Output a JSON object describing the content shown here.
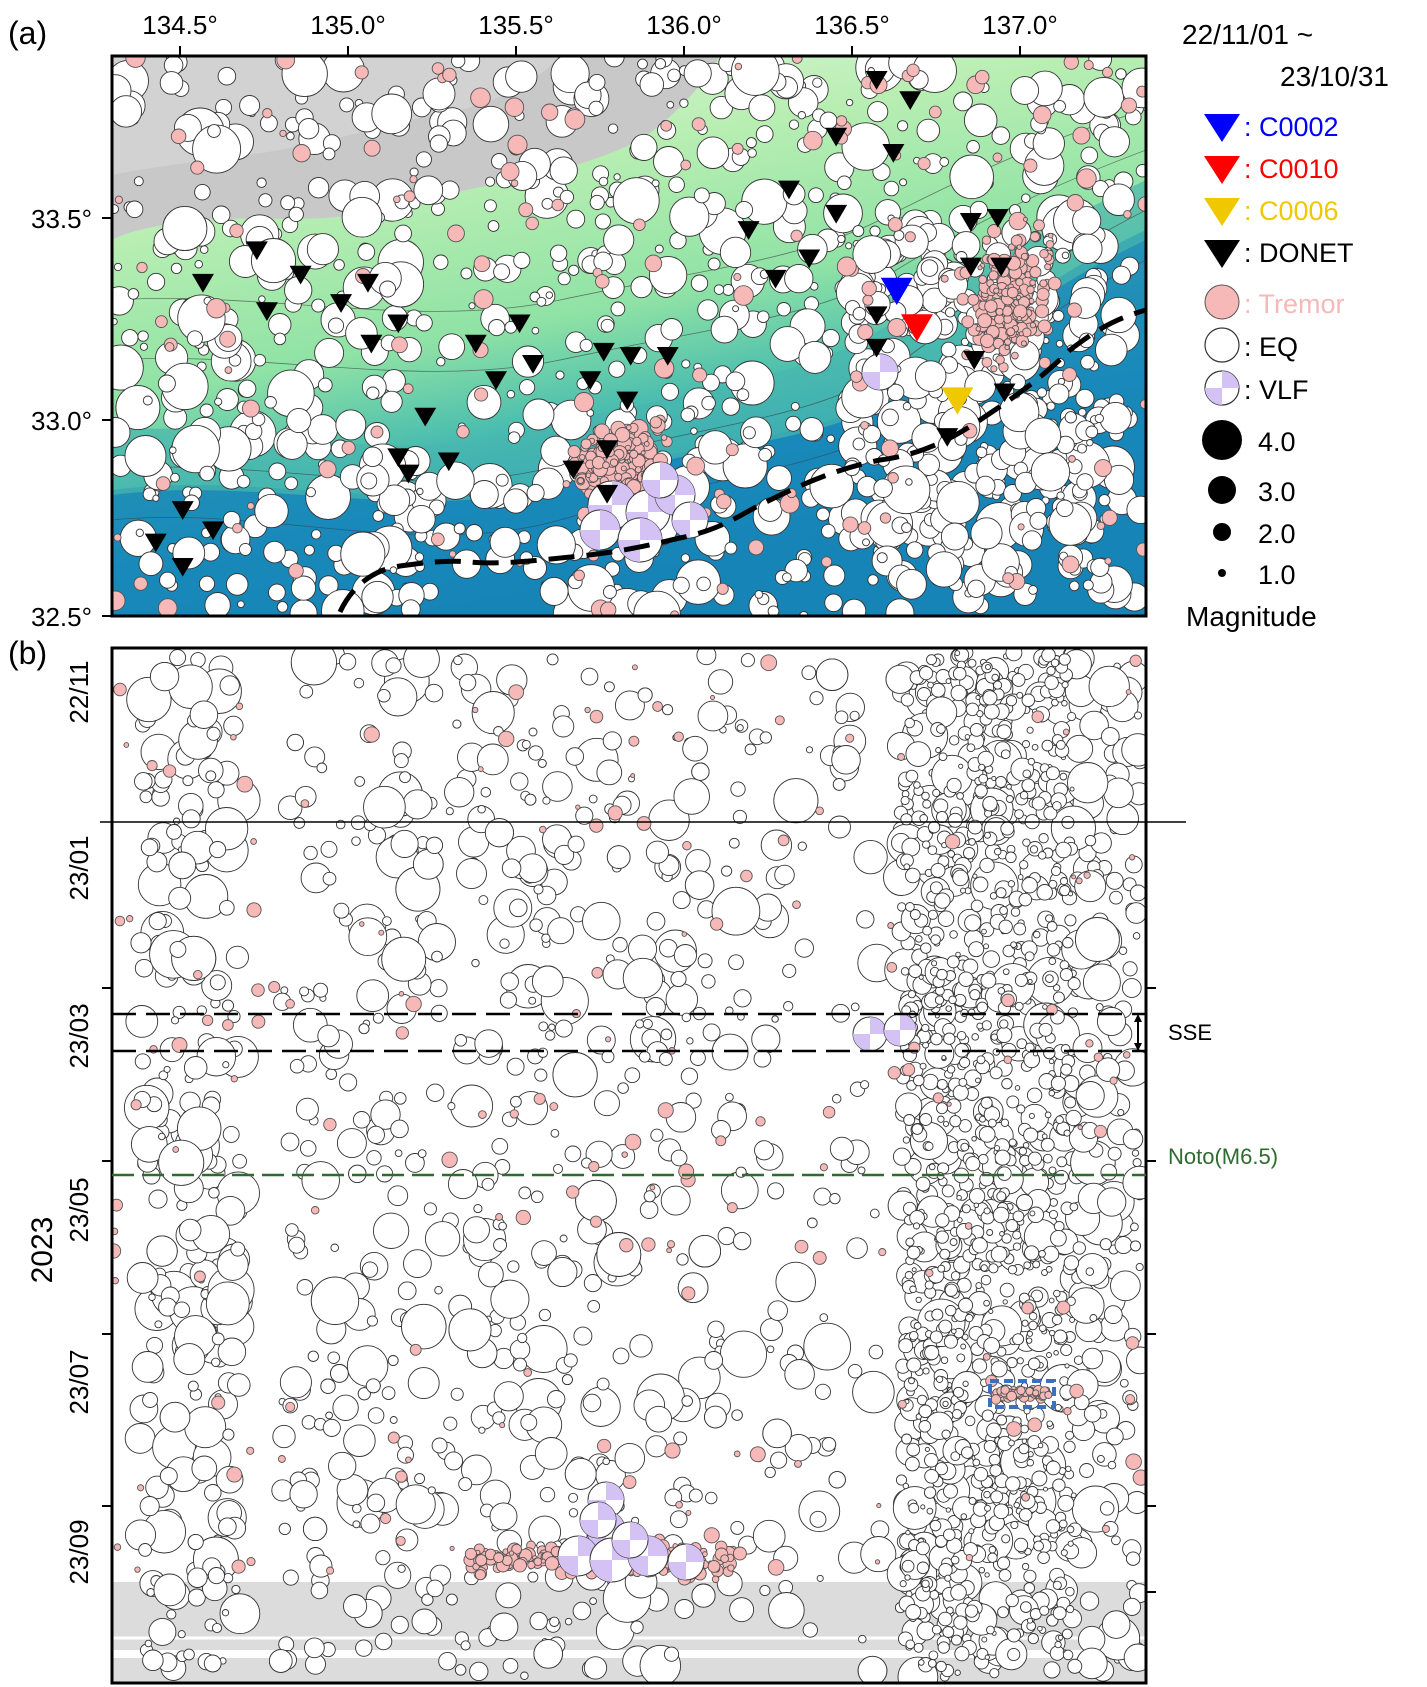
{
  "panel_a": {
    "label": "(a)",
    "lon_ticks": [
      "134.5°",
      "135.0°",
      "135.5°",
      "136.0°",
      "136.5°",
      "137.0°"
    ],
    "lat_ticks": [
      "33.5°",
      "33.0°",
      "32.5°"
    ],
    "date_range_line1": "22/11/01 ~",
    "date_range_line2": "23/10/31",
    "legend": {
      "stations": [
        {
          "label": ": C0002",
          "color": "#0000ff"
        },
        {
          "label": ": C0010",
          "color": "#ff0000"
        },
        {
          "label": ": C0006",
          "color": "#f0c800"
        },
        {
          "label": ": DONET",
          "color": "#000000"
        }
      ],
      "events": [
        {
          "label": ": Tremor",
          "color": "#f7b8b8",
          "text_color": "#f7b8b8"
        },
        {
          "label": ": EQ",
          "color": "#ffffff",
          "text_color": "#000000"
        },
        {
          "label": ": VLF",
          "color": "#d4c2f5",
          "text_color": "#000000"
        }
      ],
      "magnitudes": [
        "4.0",
        "3.0",
        "2.0",
        "1.0"
      ],
      "magnitude_title": "Magnitude"
    },
    "colors": {
      "land": "#c8c8c8",
      "shelf_light": "#e8f8e0",
      "shelf": "#b6eeb0",
      "slope": "#5fc7ad",
      "deep": "#1b8fc0",
      "trough": "#1275a8"
    },
    "stations": {
      "C0002": {
        "lon": 136.64,
        "lat": 33.3
      },
      "C0010": {
        "lon": 136.7,
        "lat": 33.21
      },
      "C0006": {
        "lon": 136.82,
        "lat": 33.03
      },
      "DONET": [
        [
          136.58,
          33.82
        ],
        [
          136.68,
          33.77
        ],
        [
          136.46,
          33.68
        ],
        [
          136.63,
          33.64
        ],
        [
          136.32,
          33.55
        ],
        [
          136.46,
          33.49
        ],
        [
          136.2,
          33.45
        ],
        [
          136.38,
          33.38
        ],
        [
          136.28,
          33.33
        ],
        [
          134.74,
          33.4
        ],
        [
          134.58,
          33.32
        ],
        [
          134.87,
          33.34
        ],
        [
          134.99,
          33.27
        ],
        [
          135.07,
          33.32
        ],
        [
          134.77,
          33.25
        ],
        [
          135.16,
          33.22
        ],
        [
          135.08,
          33.17
        ],
        [
          135.39,
          33.17
        ],
        [
          135.52,
          33.22
        ],
        [
          135.45,
          33.08
        ],
        [
          135.56,
          33.12
        ],
        [
          135.73,
          33.08
        ],
        [
          135.77,
          33.15
        ],
        [
          135.85,
          33.14
        ],
        [
          135.96,
          33.14
        ],
        [
          135.84,
          33.03
        ],
        [
          135.24,
          32.99
        ],
        [
          135.16,
          32.89
        ],
        [
          135.19,
          32.85
        ],
        [
          135.31,
          32.88
        ],
        [
          135.68,
          32.86
        ],
        [
          135.78,
          32.91
        ],
        [
          135.78,
          32.8
        ],
        [
          134.52,
          32.76
        ],
        [
          134.44,
          32.68
        ],
        [
          134.61,
          32.71
        ],
        [
          134.52,
          32.62
        ],
        [
          136.58,
          33.24
        ],
        [
          136.58,
          33.16
        ],
        [
          136.86,
          33.47
        ],
        [
          136.94,
          33.48
        ],
        [
          136.86,
          33.36
        ],
        [
          136.95,
          33.36
        ],
        [
          136.87,
          33.13
        ],
        [
          136.79,
          32.94
        ],
        [
          136.96,
          33.05
        ]
      ]
    }
  },
  "panel_b": {
    "label": "(b)",
    "year_label": "2023",
    "date_ticks": [
      "22/11",
      "23/01",
      "23/03",
      "23/05",
      "23/07",
      "23/09"
    ],
    "sse_label": "SSE",
    "noto_label": "Noto(M6.5)",
    "colors": {
      "noto_line": "#2e6b2e",
      "data_gap": "#dcdcdc",
      "box": "#3b6fc0"
    }
  }
}
